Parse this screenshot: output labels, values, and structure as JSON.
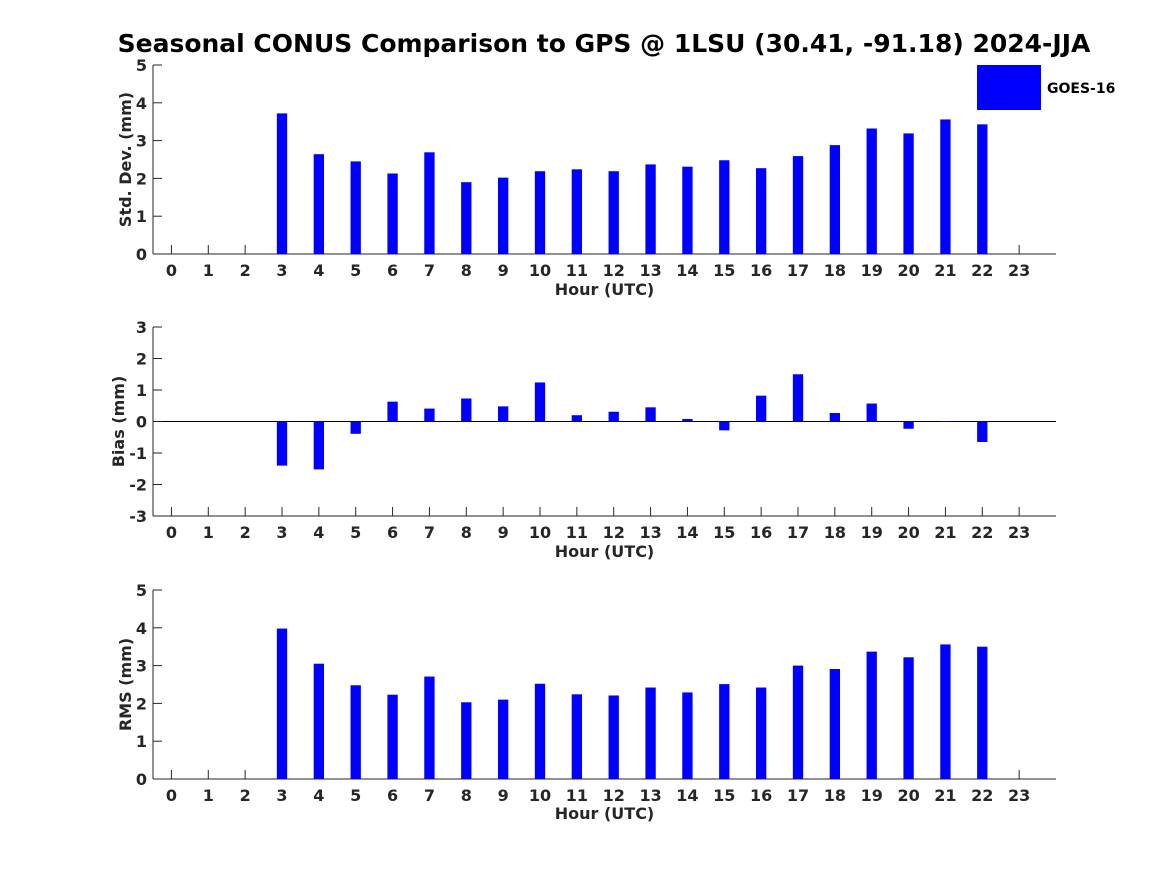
{
  "chart_data": [
    {
      "type": "bar",
      "title": "Seasonal CONUS Comparison to GPS @ 1LSU (30.41, -91.18) 2024-JJA",
      "xlabel": "Hour (UTC)",
      "ylabel": "Std. Dev. (mm)",
      "ylim": [
        0,
        5
      ],
      "yticks": [
        "0",
        "1",
        "2",
        "3",
        "4",
        "5"
      ],
      "categories": [
        "0",
        "1",
        "2",
        "3",
        "4",
        "5",
        "6",
        "7",
        "8",
        "9",
        "10",
        "11",
        "12",
        "13",
        "14",
        "15",
        "16",
        "17",
        "18",
        "19",
        "20",
        "21",
        "22",
        "23"
      ],
      "series": [
        {
          "name": "GOES-16",
          "color": "#0000ff",
          "values": [
            null,
            null,
            null,
            3.72,
            2.64,
            2.45,
            2.13,
            2.69,
            1.9,
            2.02,
            2.19,
            2.24,
            2.19,
            2.37,
            2.31,
            2.48,
            2.27,
            2.59,
            2.88,
            3.32,
            3.19,
            3.56,
            3.43,
            null
          ]
        }
      ],
      "legend": {
        "position": "top-right",
        "label": "GOES-16",
        "color": "#0000ff"
      }
    },
    {
      "type": "bar",
      "xlabel": "Hour (UTC)",
      "ylabel": "Bias (mm)",
      "ylim": [
        -3,
        3
      ],
      "yticks": [
        "-3",
        "-2",
        "-1",
        "0",
        "1",
        "2",
        "3"
      ],
      "categories": [
        "0",
        "1",
        "2",
        "3",
        "4",
        "5",
        "6",
        "7",
        "8",
        "9",
        "10",
        "11",
        "12",
        "13",
        "14",
        "15",
        "16",
        "17",
        "18",
        "19",
        "20",
        "21",
        "22",
        "23"
      ],
      "series": [
        {
          "name": "GOES-16",
          "color": "#0000ff",
          "values": [
            null,
            null,
            null,
            -1.4,
            -1.52,
            -0.39,
            0.63,
            0.41,
            0.73,
            0.48,
            1.24,
            0.2,
            0.31,
            0.45,
            0.08,
            -0.28,
            0.82,
            1.5,
            0.27,
            0.57,
            -0.23,
            0.01,
            -0.65,
            null
          ]
        }
      ]
    },
    {
      "type": "bar",
      "xlabel": "Hour (UTC)",
      "ylabel": "RMS (mm)",
      "ylim": [
        0,
        5
      ],
      "yticks": [
        "0",
        "1",
        "2",
        "3",
        "4",
        "5"
      ],
      "categories": [
        "0",
        "1",
        "2",
        "3",
        "4",
        "5",
        "6",
        "7",
        "8",
        "9",
        "10",
        "11",
        "12",
        "13",
        "14",
        "15",
        "16",
        "17",
        "18",
        "19",
        "20",
        "21",
        "22",
        "23"
      ],
      "series": [
        {
          "name": "GOES-16",
          "color": "#0000ff",
          "values": [
            null,
            null,
            null,
            3.98,
            3.05,
            2.48,
            2.23,
            2.71,
            2.03,
            2.1,
            2.52,
            2.24,
            2.21,
            2.42,
            2.29,
            2.51,
            2.42,
            3.0,
            2.91,
            3.37,
            3.22,
            3.56,
            3.5,
            null
          ]
        }
      ]
    }
  ]
}
